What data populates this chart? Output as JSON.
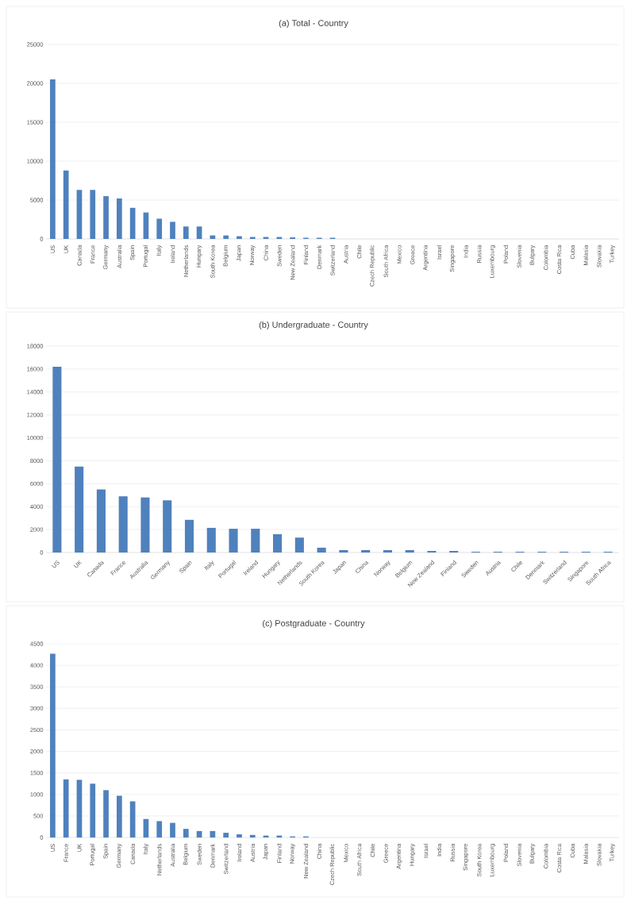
{
  "chart_data": [
    {
      "type": "bar",
      "title": "(a) Total - Country",
      "color": "#4f81bd",
      "grid": "y",
      "ylim": [
        0,
        25000
      ],
      "yticks": [
        0,
        5000,
        10000,
        15000,
        20000,
        25000
      ],
      "categories": [
        "US",
        "UK",
        "Canada",
        "France",
        "Germany",
        "Australia",
        "Spain",
        "Portugal",
        "Italy",
        "Ireland",
        "Netherlands",
        "Hungary",
        "South Korea",
        "Belgium",
        "Japan",
        "Norway",
        "China",
        "Sweden",
        "New Zealand",
        "Finland",
        "Denmark",
        "Switzerland",
        "Austria",
        "Chile",
        "Czech Republic",
        "South Africa",
        "Mexico",
        "Greece",
        "Argentina",
        "Israel",
        "Singapore",
        "India",
        "Russia",
        "Luxembourg",
        "Poland",
        "Slovenia",
        "Bulgary",
        "Colombia",
        "Costa Rica",
        "Cuba",
        "Malasia",
        "Slovakia",
        "Turkey"
      ],
      "values": [
        20500,
        8800,
        6300,
        6300,
        5500,
        5200,
        4000,
        3400,
        2600,
        2200,
        1600,
        1600,
        450,
        450,
        350,
        250,
        250,
        250,
        200,
        150,
        150,
        150,
        0,
        0,
        0,
        0,
        0,
        0,
        0,
        0,
        0,
        0,
        0,
        0,
        0,
        0,
        0,
        0,
        0,
        0,
        0,
        0,
        0
      ]
    },
    {
      "type": "bar",
      "title": "(b) Undergraduate - Country",
      "color": "#4f81bd",
      "grid": "y",
      "ylim": [
        0,
        18000
      ],
      "yticks": [
        0,
        2000,
        4000,
        6000,
        8000,
        10000,
        12000,
        14000,
        16000,
        18000
      ],
      "categories": [
        "US",
        "UK",
        "Canada",
        "France",
        "Australia",
        "Germany",
        "Spain",
        "Italy",
        "Portugal",
        "Ireland",
        "Hungary",
        "Netherlands",
        "South Korea",
        "Japan",
        "China",
        "Norway",
        "Belgium",
        "New Zealand",
        "Finland",
        "Sweden",
        "Austria",
        "Chile",
        "Denmark",
        "Switzerland",
        "Singapore",
        "South Africa"
      ],
      "values": [
        16200,
        7500,
        5500,
        4900,
        4800,
        4550,
        2850,
        2150,
        2070,
        2070,
        1600,
        1300,
        420,
        210,
        210,
        210,
        210,
        140,
        140,
        70,
        70,
        70,
        70,
        70,
        70,
        70
      ]
    },
    {
      "type": "bar",
      "title": "(c) Postgraduate - Country",
      "color": "#4f81bd",
      "grid": "y",
      "ylim": [
        0,
        4500
      ],
      "yticks": [
        0,
        500,
        1000,
        1500,
        2000,
        2500,
        3000,
        3500,
        4000,
        4500
      ],
      "categories": [
        "US",
        "France",
        "UK",
        "Portugal",
        "Spain",
        "Germany",
        "Canada",
        "Italy",
        "Netherlands",
        "Australia",
        "Belgium",
        "Sweden",
        "Denmark",
        "Switzerland",
        "Ireland",
        "Austria",
        "Japan",
        "Finland",
        "Norway",
        "New Zealand",
        "China",
        "Czech Republic",
        "Mexico",
        "South Africa",
        "Chile",
        "Greece",
        "Argentina",
        "Hungary",
        "Israel",
        "India",
        "Russia",
        "Singapore",
        "South Korea",
        "Luxembourg",
        "Poland",
        "Slovenia",
        "Bulgary",
        "Colombia",
        "Costa Rica",
        "Cuba",
        "Malasia",
        "Slovakia",
        "Turkey"
      ],
      "values": [
        4270,
        1350,
        1340,
        1250,
        1100,
        970,
        840,
        430,
        380,
        340,
        200,
        150,
        150,
        110,
        75,
        60,
        45,
        45,
        25,
        25,
        0,
        0,
        0,
        0,
        0,
        0,
        0,
        0,
        0,
        0,
        0,
        0,
        0,
        0,
        0,
        0,
        0,
        0,
        0,
        0,
        0,
        0,
        0
      ]
    }
  ]
}
